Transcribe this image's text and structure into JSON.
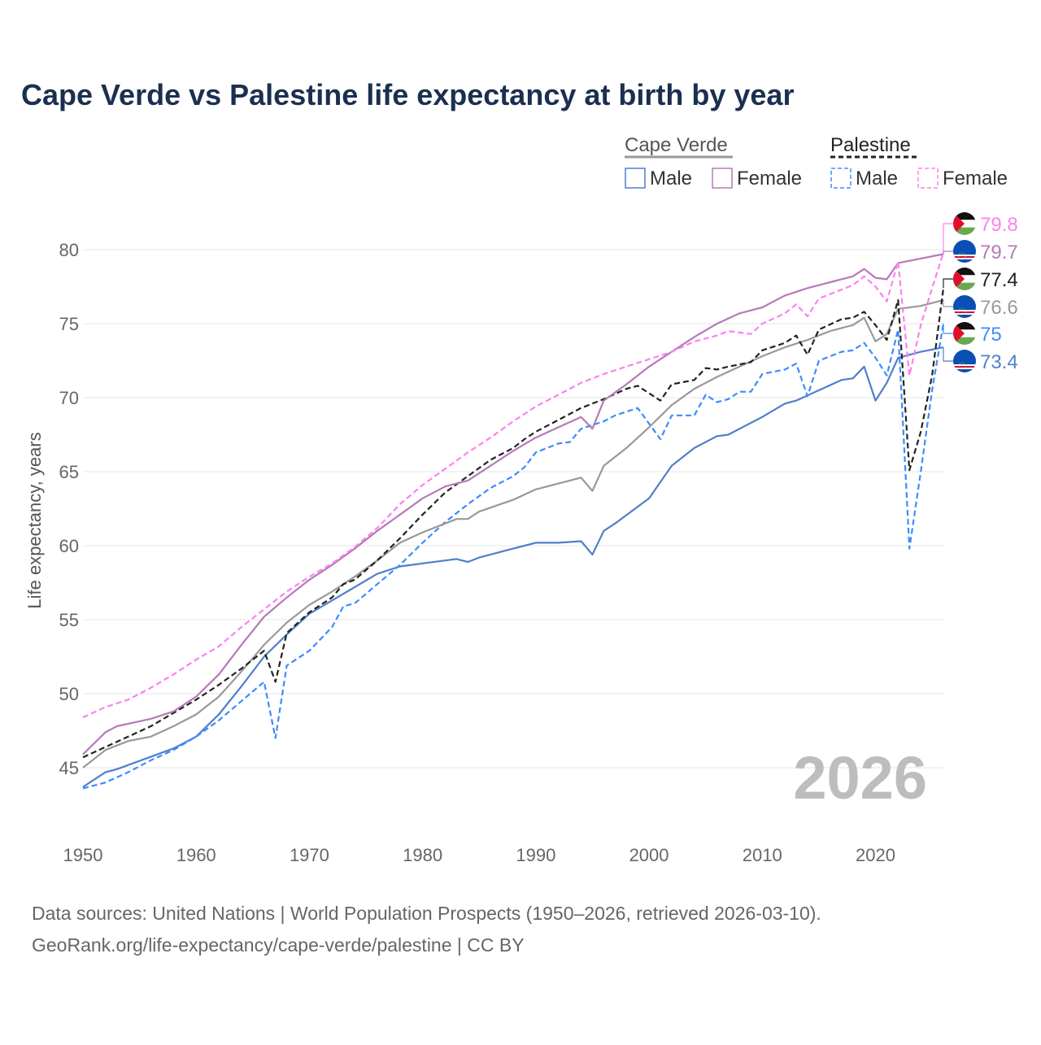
{
  "chart_data": {
    "type": "line",
    "title": "Cape Verde vs Palestine life expectancy at birth by year",
    "xlabel": "",
    "ylabel": "Life expectancy, years",
    "xlim": [
      1950,
      2026
    ],
    "ylim": [
      42.5,
      82
    ],
    "x_ticks": [
      1950,
      1960,
      1970,
      1980,
      1990,
      2000,
      2010,
      2020
    ],
    "y_ticks": [
      45,
      50,
      55,
      60,
      65,
      70,
      75,
      80
    ],
    "grid": "horizontal",
    "year_watermark": "2026",
    "legend": {
      "placement": "top-right",
      "groups": [
        {
          "name": "Cape Verde",
          "items": [
            "Male",
            "Female"
          ]
        },
        {
          "name": "Palestine",
          "items": [
            "Male",
            "Female"
          ]
        }
      ]
    },
    "series": [
      {
        "name": "Palestine Female",
        "country": "Palestine",
        "sex": "Female",
        "style": "dashed",
        "color": "#ff7ff0",
        "end_label": "79.8",
        "x": [
          1950,
          1952,
          1954,
          1956,
          1958,
          1960,
          1962,
          1964,
          1966,
          1968,
          1970,
          1972,
          1974,
          1976,
          1978,
          1980,
          1982,
          1984,
          1986,
          1988,
          1990,
          1992,
          1994,
          1996,
          1998,
          2000,
          2002,
          2004,
          2006,
          2007,
          2009,
          2010,
          2012,
          2013,
          2014,
          2015,
          2017,
          2018,
          2019,
          2020,
          2021,
          2022,
          2023,
          2024,
          2025,
          2026
        ],
        "y": [
          48.4,
          49.1,
          49.6,
          50.4,
          51.3,
          52.3,
          53.2,
          54.5,
          55.7,
          56.9,
          57.9,
          58.8,
          59.9,
          61.2,
          62.8,
          64.1,
          65.2,
          66.3,
          67.3,
          68.4,
          69.4,
          70.2,
          71.0,
          71.6,
          72.1,
          72.6,
          73.1,
          73.8,
          74.2,
          74.5,
          74.3,
          75.0,
          75.7,
          76.3,
          75.5,
          76.7,
          77.3,
          77.6,
          78.2,
          77.5,
          76.5,
          79.2,
          71.5,
          74.9,
          77.4,
          79.8
        ]
      },
      {
        "name": "Cape Verde Female",
        "country": "Cape Verde",
        "sex": "Female",
        "style": "solid",
        "color": "#b57ab8",
        "end_label": "79.7",
        "x": [
          1950,
          1952,
          1953,
          1956,
          1958,
          1960,
          1962,
          1964,
          1966,
          1968,
          1970,
          1972,
          1974,
          1976,
          1978,
          1980,
          1982,
          1984,
          1986,
          1988,
          1990,
          1992,
          1994,
          1995,
          1996,
          1998,
          2000,
          2002,
          2004,
          2006,
          2008,
          2010,
          2011,
          2012,
          2014,
          2016,
          2018,
          2019,
          2020,
          2021,
          2022,
          2024,
          2026
        ],
        "y": [
          45.9,
          47.4,
          47.8,
          48.3,
          48.8,
          49.8,
          51.3,
          53.3,
          55.2,
          56.5,
          57.7,
          58.7,
          59.8,
          61.0,
          62.1,
          63.2,
          64.0,
          64.4,
          65.4,
          66.4,
          67.3,
          68.0,
          68.7,
          67.9,
          69.8,
          70.9,
          72.1,
          73.1,
          74.1,
          75.0,
          75.7,
          76.1,
          76.5,
          76.9,
          77.4,
          77.8,
          78.2,
          78.7,
          78.1,
          78.0,
          79.1,
          79.4,
          79.7
        ]
      },
      {
        "name": "Palestine",
        "country": "Palestine",
        "sex": "Total",
        "style": "dashed",
        "color": "#222222",
        "end_label": "77.4",
        "x": [
          1950,
          1952,
          1954,
          1956,
          1958,
          1960,
          1962,
          1964,
          1966,
          1967,
          1968,
          1970,
          1972,
          1973,
          1974,
          1976,
          1978,
          1980,
          1982,
          1984,
          1986,
          1988,
          1989,
          1990,
          1992,
          1994,
          1996,
          1998,
          1999,
          2001,
          2002,
          2004,
          2005,
          2006,
          2007,
          2009,
          2010,
          2012,
          2013,
          2014,
          2015,
          2017,
          2018,
          2019,
          2020,
          2021,
          2022,
          2023,
          2024,
          2025,
          2026
        ],
        "y": [
          45.7,
          46.4,
          47.1,
          47.8,
          48.7,
          49.6,
          50.6,
          51.7,
          52.9,
          50.8,
          54.1,
          55.5,
          56.5,
          57.4,
          57.7,
          59.0,
          60.5,
          62.1,
          63.6,
          64.7,
          65.8,
          66.6,
          67.2,
          67.7,
          68.5,
          69.3,
          69.9,
          70.6,
          70.8,
          69.8,
          70.9,
          71.2,
          72.0,
          71.9,
          72.1,
          72.4,
          73.2,
          73.7,
          74.2,
          72.9,
          74.6,
          75.3,
          75.4,
          75.8,
          74.9,
          73.9,
          76.6,
          65.1,
          67.7,
          71.5,
          77.4
        ]
      },
      {
        "name": "Cape Verde",
        "country": "Cape Verde",
        "sex": "Total",
        "style": "solid",
        "color": "#999999",
        "end_label": "76.6",
        "x": [
          1950,
          1952,
          1954,
          1956,
          1958,
          1960,
          1962,
          1964,
          1966,
          1968,
          1970,
          1972,
          1974,
          1976,
          1978,
          1980,
          1982,
          1983,
          1984,
          1985,
          1988,
          1990,
          1992,
          1994,
          1995,
          1996,
          1998,
          2000,
          2002,
          2004,
          2006,
          2008,
          2010,
          2012,
          2014,
          2016,
          2018,
          2019,
          2020,
          2021,
          2022,
          2024,
          2026
        ],
        "y": [
          45.0,
          46.2,
          46.8,
          47.1,
          47.8,
          48.6,
          49.8,
          51.5,
          53.3,
          54.8,
          56.0,
          56.9,
          57.9,
          59.0,
          60.2,
          60.9,
          61.5,
          61.8,
          61.8,
          62.3,
          63.1,
          63.8,
          64.2,
          64.6,
          63.7,
          65.4,
          66.6,
          68.0,
          69.5,
          70.6,
          71.4,
          72.1,
          72.8,
          73.4,
          73.9,
          74.5,
          74.9,
          75.4,
          73.8,
          74.3,
          76.0,
          76.2,
          76.6
        ]
      },
      {
        "name": "Palestine Male",
        "country": "Palestine",
        "sex": "Male",
        "style": "dashed",
        "color": "#3d8bff",
        "end_label": "75",
        "x": [
          1950,
          1952,
          1954,
          1956,
          1958,
          1960,
          1962,
          1964,
          1966,
          1967,
          1968,
          1970,
          1972,
          1973,
          1974,
          1976,
          1978,
          1980,
          1982,
          1984,
          1986,
          1988,
          1989,
          1990,
          1992,
          1993,
          1994,
          1996,
          1997,
          1999,
          2001,
          2002,
          2004,
          2005,
          2006,
          2007,
          2008,
          2009,
          2010,
          2012,
          2013,
          2014,
          2015,
          2017,
          2018,
          2019,
          2020,
          2021,
          2022,
          2023,
          2024,
          2025,
          2026
        ],
        "y": [
          43.6,
          44.0,
          44.7,
          45.5,
          46.2,
          47.1,
          48.2,
          49.5,
          50.8,
          47.0,
          51.9,
          52.9,
          54.5,
          55.9,
          56.1,
          57.4,
          58.7,
          60.2,
          61.6,
          62.8,
          63.9,
          64.7,
          65.3,
          66.3,
          66.9,
          67.0,
          67.9,
          68.4,
          68.8,
          69.3,
          67.2,
          68.8,
          68.8,
          70.2,
          69.7,
          69.9,
          70.4,
          70.4,
          71.6,
          71.9,
          72.3,
          70.1,
          72.5,
          73.1,
          73.2,
          73.7,
          72.7,
          71.5,
          74.6,
          59.8,
          65.0,
          70.5,
          75.0
        ]
      },
      {
        "name": "Cape Verde Male",
        "country": "Cape Verde",
        "sex": "Male",
        "style": "solid",
        "color": "#4f7fcb",
        "end_label": "73.4",
        "x": [
          1950,
          1952,
          1953,
          1958,
          1960,
          1962,
          1964,
          1966,
          1968,
          1970,
          1972,
          1974,
          1976,
          1978,
          1980,
          1982,
          1983,
          1984,
          1985,
          1988,
          1990,
          1992,
          1994,
          1995,
          1996,
          1997,
          2000,
          2002,
          2004,
          2006,
          2007,
          2010,
          2012,
          2013,
          2015,
          2017,
          2018,
          2019,
          2020,
          2021,
          2022,
          2024,
          2026
        ],
        "y": [
          43.7,
          44.7,
          44.9,
          46.3,
          47.1,
          48.6,
          50.5,
          52.5,
          54.0,
          55.4,
          56.3,
          57.2,
          58.1,
          58.6,
          58.8,
          59.0,
          59.1,
          58.9,
          59.2,
          59.8,
          60.2,
          60.2,
          60.3,
          59.4,
          61.0,
          61.5,
          63.2,
          65.4,
          66.6,
          67.4,
          67.5,
          68.7,
          69.6,
          69.8,
          70.5,
          71.2,
          71.3,
          72.1,
          69.8,
          71.0,
          72.7,
          73.1,
          73.4
        ]
      }
    ]
  },
  "footer": {
    "line1": "Data sources: United Nations | World Population Prospects (1950–2026, retrieved 2026-03-10).",
    "line2": "GeoRank.org/life-expectancy/cape-verde/palestine | CC BY"
  }
}
